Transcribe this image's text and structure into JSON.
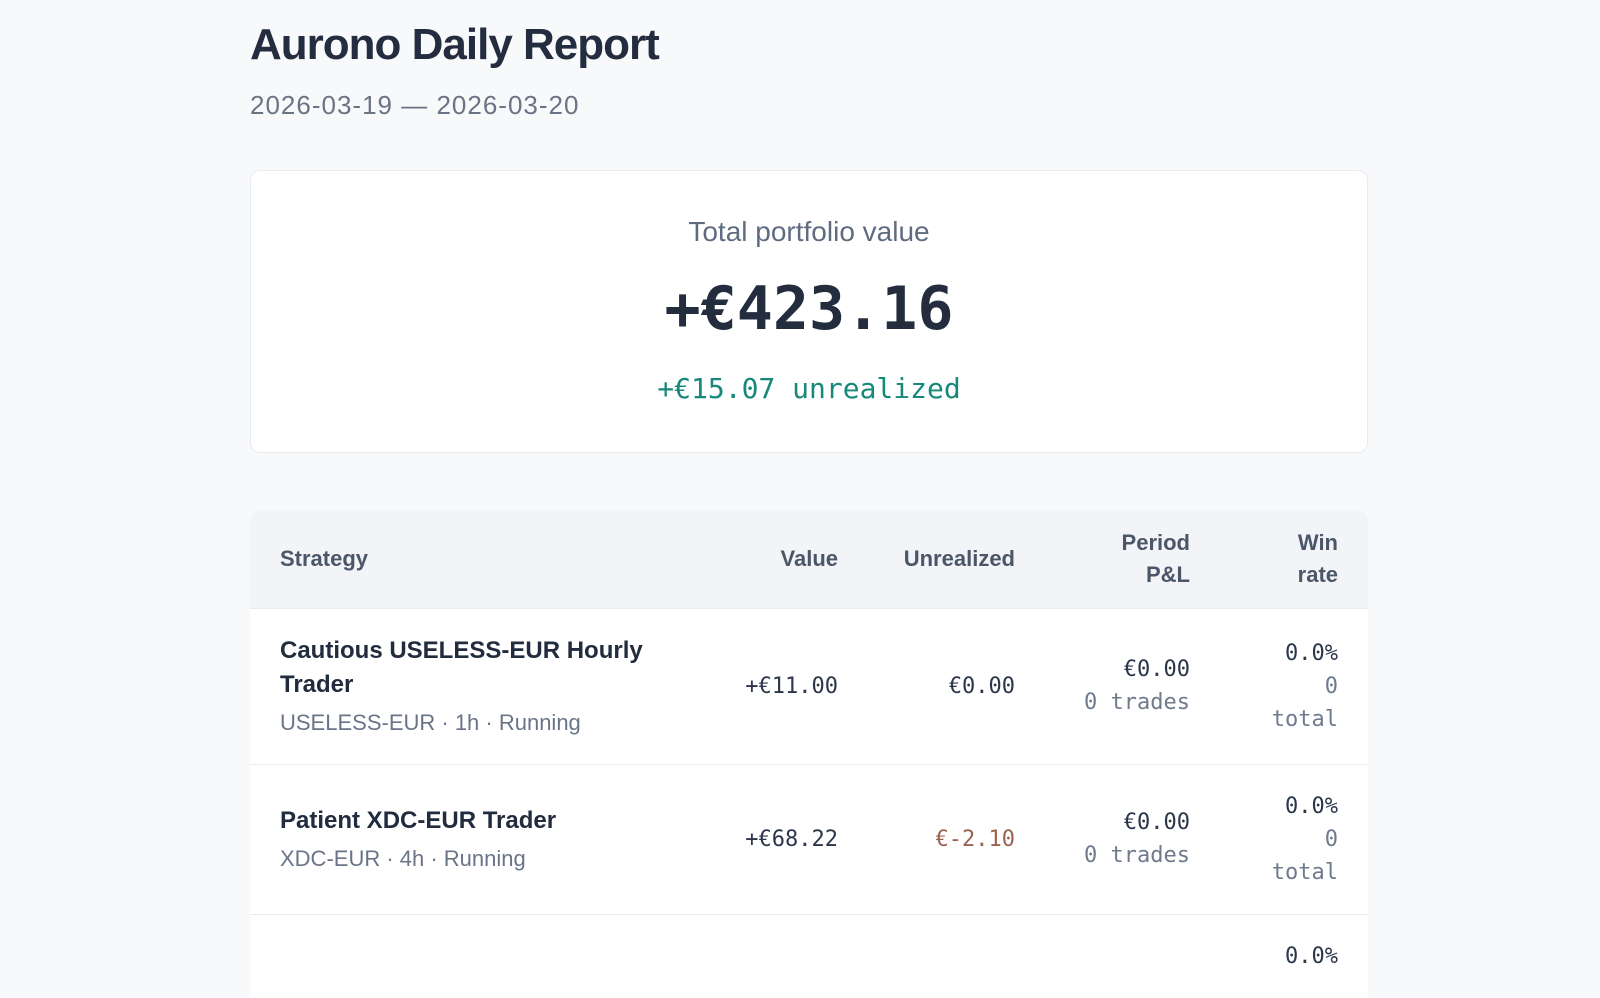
{
  "page": {
    "title": "Aurono Daily Report",
    "date_range": "2026-03-19 — 2026-03-20"
  },
  "summary": {
    "label": "Total portfolio value",
    "total_value": "+€423.16",
    "unrealized": "+€15.07 unrealized"
  },
  "table": {
    "headers": {
      "strategy": "Strategy",
      "value": "Value",
      "unrealized": "Unrealized",
      "period_pnl": "Period P&L",
      "win_rate": "Win rate"
    },
    "rows": [
      {
        "name": "Cautious USELESS-EUR Hourly Trader",
        "meta": "USELESS-EUR · 1h · Running",
        "value": "+€11.00",
        "unrealized": "€0.00",
        "unrealized_negative": false,
        "pnl": "€0.00",
        "trades": "0 trades",
        "win_pct": "0.0%",
        "win_total": "0 total"
      },
      {
        "name": "Patient XDC-EUR Trader",
        "meta": "XDC-EUR · 4h · Running",
        "value": "+€68.22",
        "unrealized": "€-2.10",
        "unrealized_negative": true,
        "pnl": "€0.00",
        "trades": "0 trades",
        "win_pct": "0.0%",
        "win_total": "0 total"
      },
      {
        "name": "",
        "meta": "",
        "value": "",
        "unrealized": "",
        "unrealized_negative": false,
        "pnl": "",
        "trades": "",
        "win_pct": "0.0%",
        "win_total": ""
      }
    ]
  },
  "colors": {
    "positive": "#17897a",
    "negative": "#9a6350",
    "heading": "#232d3f"
  }
}
